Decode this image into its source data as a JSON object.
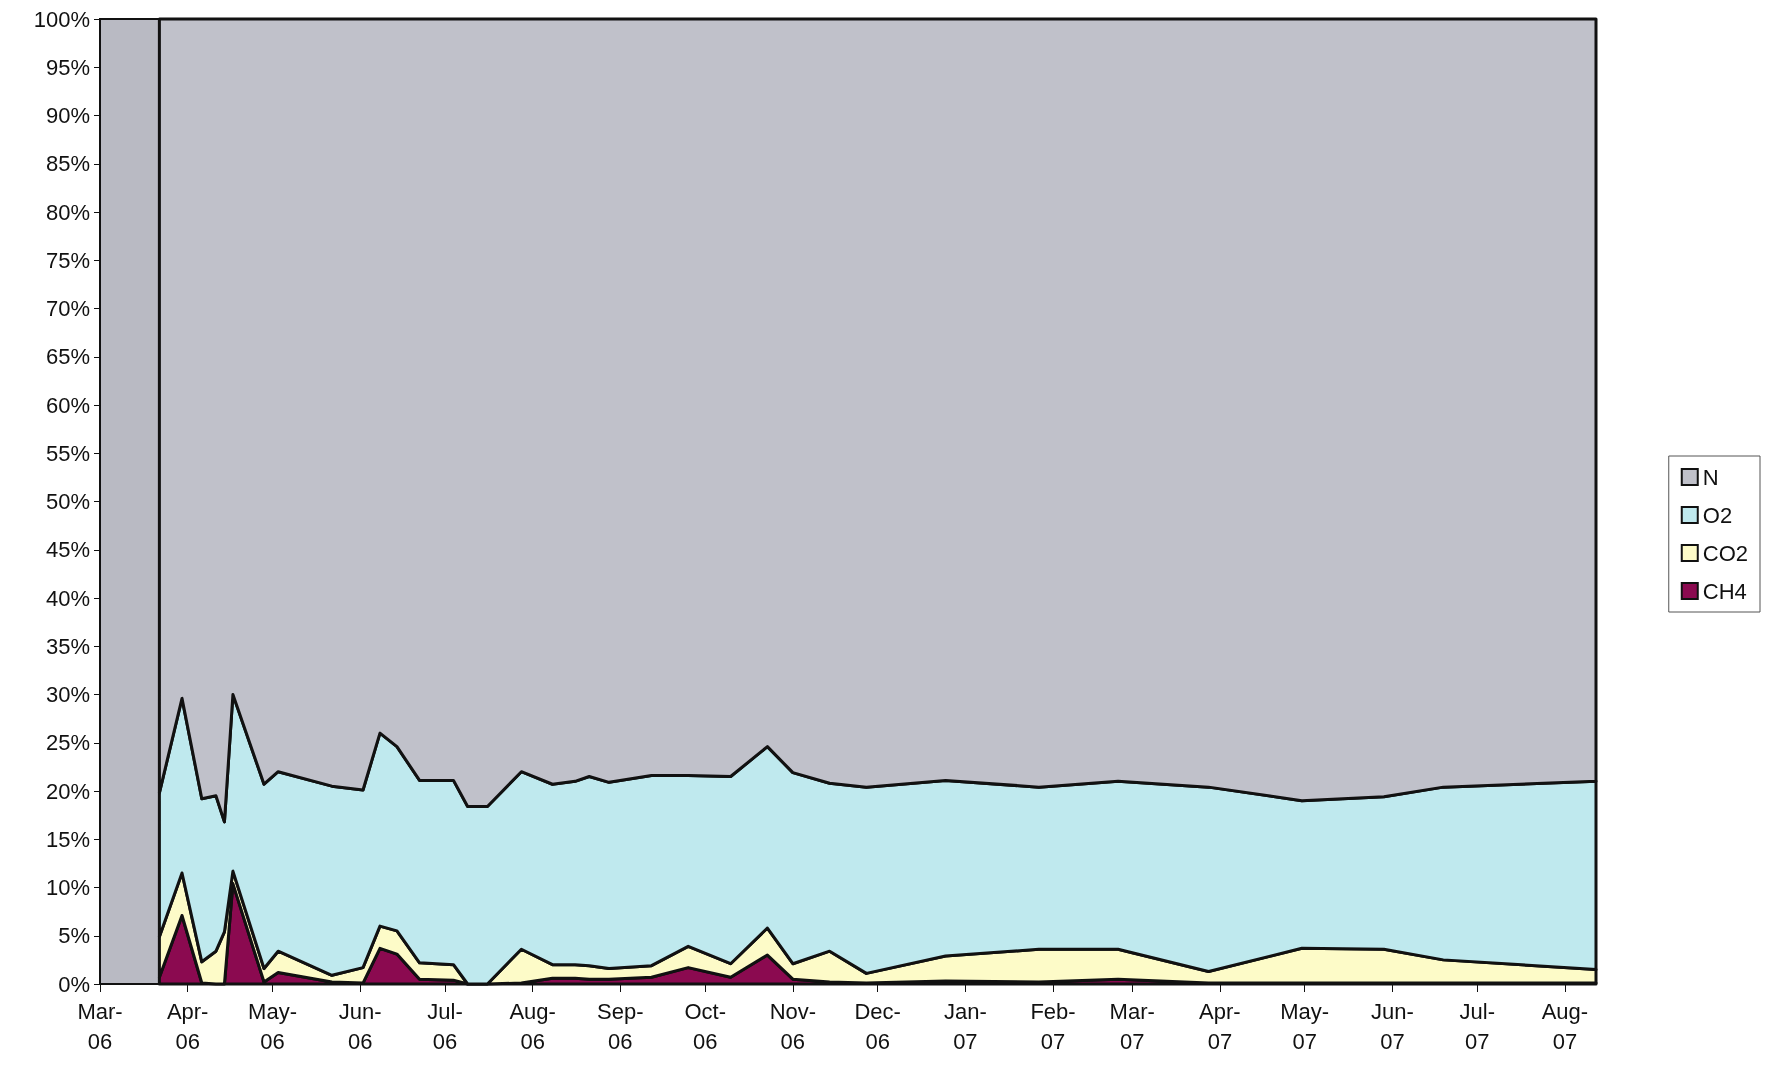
{
  "chart_data": {
    "type": "area",
    "stacked": true,
    "x": [
      "2006-03-22",
      "2006-03-30",
      "2006-04-06",
      "2006-04-11",
      "2006-04-14",
      "2006-04-17",
      "2006-04-28",
      "2006-05-03",
      "2006-05-22",
      "2006-06-02",
      "2006-06-08",
      "2006-06-14",
      "2006-06-22",
      "2006-07-04",
      "2006-07-09",
      "2006-07-16",
      "2006-07-28",
      "2006-08-08",
      "2006-08-16",
      "2006-08-21",
      "2006-08-28",
      "2006-09-12",
      "2006-09-25",
      "2006-10-10",
      "2006-10-23",
      "2006-11-01",
      "2006-11-14",
      "2006-11-27",
      "2006-12-25",
      "2007-01-27",
      "2007-02-24",
      "2007-03-28",
      "2007-04-30",
      "2007-05-29",
      "2007-06-19",
      "2007-08-12"
    ],
    "series": [
      {
        "name": "CH4",
        "color": "#8b0a50",
        "values": [
          0.7,
          7.1,
          0.1,
          0,
          0,
          10.4,
          0.2,
          1.2,
          0.2,
          0.1,
          3.7,
          3.1,
          0.5,
          0.4,
          0,
          0,
          0.1,
          0.6,
          0.6,
          0.5,
          0.5,
          0.7,
          1.7,
          0.7,
          3.0,
          0.5,
          0.2,
          0.1,
          0.3,
          0.2,
          0.5,
          0.1,
          0.1,
          0.1,
          0.1,
          0.1
        ]
      },
      {
        "name": "CO2",
        "color": "#fdfbc8",
        "values": [
          4.2,
          4.4,
          2.2,
          3.4,
          5.4,
          1.3,
          1.4,
          2.2,
          0.7,
          1.6,
          2.3,
          2.4,
          1.7,
          1.6,
          0,
          0,
          3.5,
          1.4,
          1.4,
          1.4,
          1.1,
          1.2,
          2.2,
          1.4,
          2.8,
          1.6,
          3.2,
          1.0,
          2.6,
          3.4,
          3.1,
          1.2,
          3.6,
          3.5,
          2.4,
          1.4
        ]
      },
      {
        "name": "O2",
        "color": "#bfe9ee",
        "values": [
          14.9,
          18.1,
          16.9,
          16.1,
          11.4,
          18.3,
          19.1,
          18.6,
          19.6,
          18.4,
          20.0,
          19.1,
          18.9,
          19.1,
          18.4,
          18.4,
          18.4,
          18.7,
          19.0,
          19.6,
          19.3,
          19.7,
          17.7,
          19.4,
          18.8,
          19.8,
          17.4,
          19.3,
          18.2,
          16.8,
          17.4,
          19.1,
          15.3,
          15.8,
          17.9,
          19.5
        ]
      },
      {
        "name": "N",
        "color": "#c0c1ca",
        "values": [
          80.2,
          70.4,
          80.8,
          80.5,
          83.2,
          70.0,
          79.3,
          78.0,
          79.5,
          79.9,
          74.0,
          75.4,
          78.9,
          78.9,
          81.6,
          81.6,
          78.0,
          79.3,
          79.0,
          78.5,
          79.1,
          78.4,
          78.4,
          78.5,
          75.4,
          78.1,
          79.2,
          79.6,
          78.9,
          79.6,
          79.0,
          79.6,
          81.0,
          80.6,
          79.6,
          79.0
        ]
      }
    ],
    "xlim": [
      "2006-03-01",
      "2007-08-12"
    ],
    "xticks": [
      {
        "value": "2006-03-01",
        "label": "Mar-06"
      },
      {
        "value": "2006-04-01",
        "label": "Apr-06"
      },
      {
        "value": "2006-05-01",
        "label": "May-06"
      },
      {
        "value": "2006-06-01",
        "label": "Jun-06"
      },
      {
        "value": "2006-07-01",
        "label": "Jul-06"
      },
      {
        "value": "2006-08-01",
        "label": "Aug-06"
      },
      {
        "value": "2006-09-01",
        "label": "Sep-06"
      },
      {
        "value": "2006-10-01",
        "label": "Oct-06"
      },
      {
        "value": "2006-11-01",
        "label": "Nov-06"
      },
      {
        "value": "2006-12-01",
        "label": "Dec-06"
      },
      {
        "value": "2007-01-01",
        "label": "Jan-07"
      },
      {
        "value": "2007-02-01",
        "label": "Feb-07"
      },
      {
        "value": "2007-03-01",
        "label": "Mar-07"
      },
      {
        "value": "2007-04-01",
        "label": "Apr-07"
      },
      {
        "value": "2007-05-01",
        "label": "May-07"
      },
      {
        "value": "2007-06-01",
        "label": "Jun-07"
      },
      {
        "value": "2007-07-01",
        "label": "Jul-07"
      },
      {
        "value": "2007-08-01",
        "label": "Aug-07"
      }
    ],
    "ylim": [
      0,
      100
    ],
    "yticks": [
      {
        "value": 0,
        "label": "0%"
      },
      {
        "value": 5,
        "label": "5%"
      },
      {
        "value": 10,
        "label": "10%"
      },
      {
        "value": 15,
        "label": "15%"
      },
      {
        "value": 20,
        "label": "20%"
      },
      {
        "value": 25,
        "label": "25%"
      },
      {
        "value": 30,
        "label": "30%"
      },
      {
        "value": 35,
        "label": "35%"
      },
      {
        "value": 40,
        "label": "40%"
      },
      {
        "value": 45,
        "label": "45%"
      },
      {
        "value": 50,
        "label": "50%"
      },
      {
        "value": 55,
        "label": "55%"
      },
      {
        "value": 60,
        "label": "60%"
      },
      {
        "value": 65,
        "label": "65%"
      },
      {
        "value": 70,
        "label": "70%"
      },
      {
        "value": 75,
        "label": "75%"
      },
      {
        "value": 80,
        "label": "80%"
      },
      {
        "value": 85,
        "label": "85%"
      },
      {
        "value": 90,
        "label": "90%"
      },
      {
        "value": 95,
        "label": "95%"
      },
      {
        "value": 100,
        "label": "100%"
      }
    ],
    "legend": "right"
  }
}
